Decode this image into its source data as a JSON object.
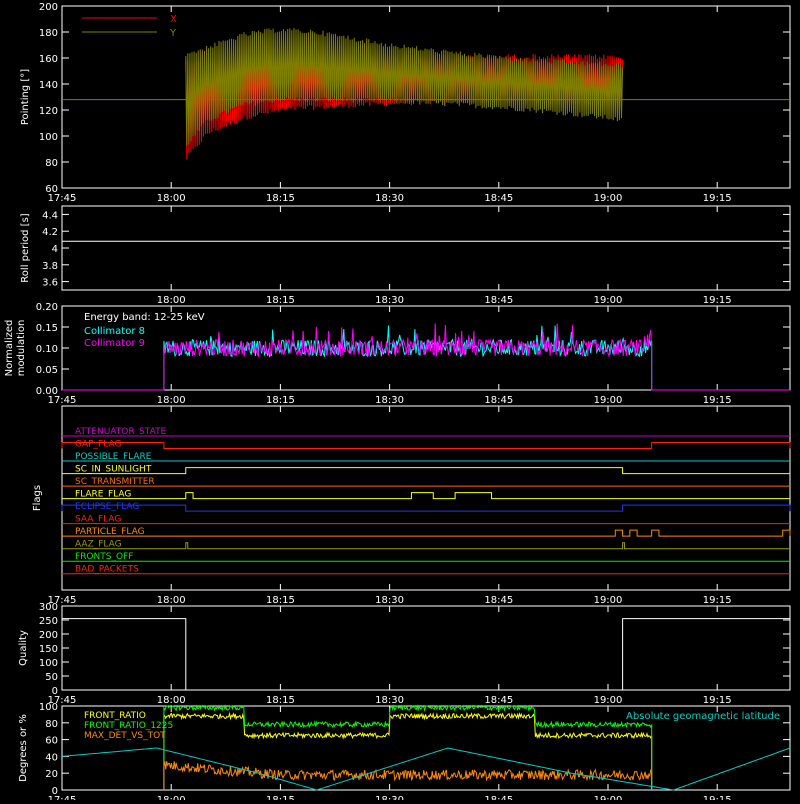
{
  "chart_data": [
    {
      "type": "line",
      "ylabel": "Pointing [°]",
      "ylim": [
        60,
        200
      ],
      "yticks": [
        60,
        80,
        100,
        120,
        140,
        160,
        180,
        200
      ],
      "x_tick_labels": [
        "17:45",
        "18:00",
        "18:15",
        "18:30",
        "18:45",
        "19:00",
        "19:15"
      ],
      "legend_placement": "top-left",
      "series": [
        {
          "name": "X",
          "color": "#ff0000",
          "x": [
            "18:02",
            "18:05",
            "18:10",
            "18:15",
            "18:20",
            "18:30",
            "18:40",
            "18:50",
            "19:00",
            "19:02"
          ],
          "lower": [
            80,
            100,
            112,
            118,
            120,
            123,
            125,
            124,
            123,
            122
          ],
          "upper": [
            160,
            160,
            160,
            162,
            162,
            163,
            163,
            163,
            163,
            162
          ]
        },
        {
          "name": "Y",
          "color": "#808000",
          "x": [
            "18:02",
            "18:05",
            "18:10",
            "18:15",
            "18:20",
            "18:30",
            "18:40",
            "18:50",
            "19:00",
            "19:02"
          ],
          "lower": [
            90,
            110,
            122,
            126,
            126,
            125,
            122,
            118,
            112,
            110
          ],
          "upper": [
            165,
            170,
            180,
            184,
            182,
            172,
            165,
            160,
            157,
            156
          ]
        }
      ],
      "baseline": 128
    },
    {
      "type": "line",
      "ylabel": "Roll period [s]",
      "ylim": [
        3.5,
        4.5
      ],
      "yticks": [
        3.6,
        3.8,
        4.0,
        4.2,
        4.4
      ],
      "x_tick_labels": [
        "18:00",
        "18:15",
        "18:30",
        "18:45",
        "19:00",
        "19:15"
      ],
      "series": [
        {
          "name": "",
          "color": "#ffffff",
          "x": [
            "17:45",
            "19:25"
          ],
          "values": [
            4.08,
            4.08
          ]
        }
      ]
    },
    {
      "type": "line",
      "ylabel": "Normalized modulation",
      "ylim": [
        0,
        0.2
      ],
      "yticks": [
        "0.00",
        "0.05",
        "0.10",
        "0.15",
        "0.20"
      ],
      "x_tick_labels": [
        "17:45",
        "18:00",
        "18:15",
        "18:30",
        "18:45",
        "19:00",
        "19:15"
      ],
      "annotation": "Energy band: 12-25 keV",
      "series": [
        {
          "name": "Collimator 8",
          "color": "#00ffff",
          "level": 0.1,
          "noise": 0.02,
          "start": "17:59",
          "end": "19:06"
        },
        {
          "name": "Collimator 9",
          "color": "#ff00ff",
          "level": 0.1,
          "noise": 0.02,
          "start": "17:59",
          "end": "19:06"
        }
      ]
    },
    {
      "type": "line",
      "ylabel": "Flags",
      "x_tick_labels": [
        "17:45",
        "18:00",
        "18:15",
        "18:30",
        "18:45",
        "19:00",
        "19:15"
      ],
      "flags": [
        {
          "name": "ATTENUATOR_STATE",
          "color": "#cc00cc",
          "highs": []
        },
        {
          "name": "GAP_FLAG",
          "color": "#ff2200",
          "highs": [
            [
              "17:45",
              "17:59"
            ],
            [
              "19:06",
              "19:25"
            ]
          ]
        },
        {
          "name": "POSSIBLE_FLARE",
          "color": "#00cccc",
          "highs": []
        },
        {
          "name": "SC_IN_SUNLIGHT",
          "color": "#ffff00",
          "highs": [
            [
              "18:02",
              "19:02"
            ]
          ]
        },
        {
          "name": "SC_TRANSMITTER",
          "color": "#ff6600",
          "highs": []
        },
        {
          "name": "FLARE_FLAG",
          "color": "#ffff00",
          "highs": [
            [
              "18:02",
              "18:03"
            ],
            [
              "18:33",
              "18:36"
            ],
            [
              "18:39",
              "18:44"
            ]
          ]
        },
        {
          "name": "ECLIPSE_FLAG",
          "color": "#2233ff",
          "highs": [
            [
              "17:45",
              "18:02"
            ],
            [
              "19:02",
              "19:25"
            ]
          ]
        },
        {
          "name": "SAA_FLAG",
          "color": "#ff2200",
          "highs": []
        },
        {
          "name": "PARTICLE_FLAG",
          "color": "#ff8800",
          "highs": [
            [
              "19:01",
              "19:02"
            ],
            [
              "19:03",
              "19:04"
            ],
            [
              "19:06",
              "19:07"
            ],
            [
              "19:24",
              "19:25"
            ]
          ]
        },
        {
          "name": "AAZ_FLAG",
          "color": "#999900",
          "highs": [
            [
              "18:02",
              "18:02"
            ],
            [
              "19:02",
              "19:02"
            ]
          ]
        },
        {
          "name": "FRONTS_OFF",
          "color": "#00ee00",
          "highs": []
        },
        {
          "name": "BAD_PACKETS",
          "color": "#ff2200",
          "highs": []
        }
      ]
    },
    {
      "type": "line",
      "ylabel": "Quality",
      "ylim": [
        0,
        300
      ],
      "yticks": [
        0,
        50,
        100,
        150,
        200,
        250,
        300
      ],
      "x_tick_labels": [
        "17:45",
        "18:00",
        "18:15",
        "18:30",
        "18:45",
        "19:00",
        "19:15"
      ],
      "series": [
        {
          "name": "",
          "color": "#ffffff",
          "x": [
            "17:45",
            "18:02",
            "18:02",
            "19:02",
            "19:02",
            "19:25"
          ],
          "values": [
            255,
            255,
            0,
            0,
            255,
            255
          ]
        }
      ]
    },
    {
      "type": "line",
      "ylabel": "Degrees or %",
      "ylim": [
        0,
        100
      ],
      "yticks": [
        0,
        20,
        40,
        60,
        80,
        100
      ],
      "x_tick_labels": [
        "17:45",
        "18:00",
        "18:15",
        "18:30",
        "18:45",
        "19:00",
        "19:15"
      ],
      "series": [
        {
          "name": "FRONT_RATIO",
          "color": "#ffff00",
          "x": [
            "17:59",
            "18:10",
            "18:10",
            "18:30",
            "18:30",
            "18:50",
            "18:50",
            "19:06"
          ],
          "values": [
            88,
            88,
            65,
            65,
            88,
            88,
            65,
            65
          ]
        },
        {
          "name": "FRONT_RATIO_1225",
          "color": "#00ff00",
          "x": [
            "17:59",
            "18:10",
            "18:10",
            "18:30",
            "18:30",
            "18:50",
            "18:50",
            "19:06"
          ],
          "values": [
            98,
            98,
            78,
            78,
            98,
            98,
            78,
            78
          ]
        },
        {
          "name": "MAX_DET_VS_TOT",
          "color": "#ff8800",
          "x": [
            "17:59",
            "18:05",
            "18:15",
            "18:30",
            "18:45",
            "19:00",
            "19:06"
          ],
          "values": [
            30,
            25,
            18,
            18,
            18,
            18,
            18
          ]
        },
        {
          "name": "Absolute geomagnetic latitude",
          "color": "#00cccc",
          "x": [
            "17:45",
            "17:58",
            "18:12",
            "18:20",
            "18:38",
            "18:55",
            "19:09",
            "19:25"
          ],
          "values": [
            40,
            50,
            20,
            0,
            50,
            20,
            0,
            50
          ]
        }
      ]
    }
  ]
}
